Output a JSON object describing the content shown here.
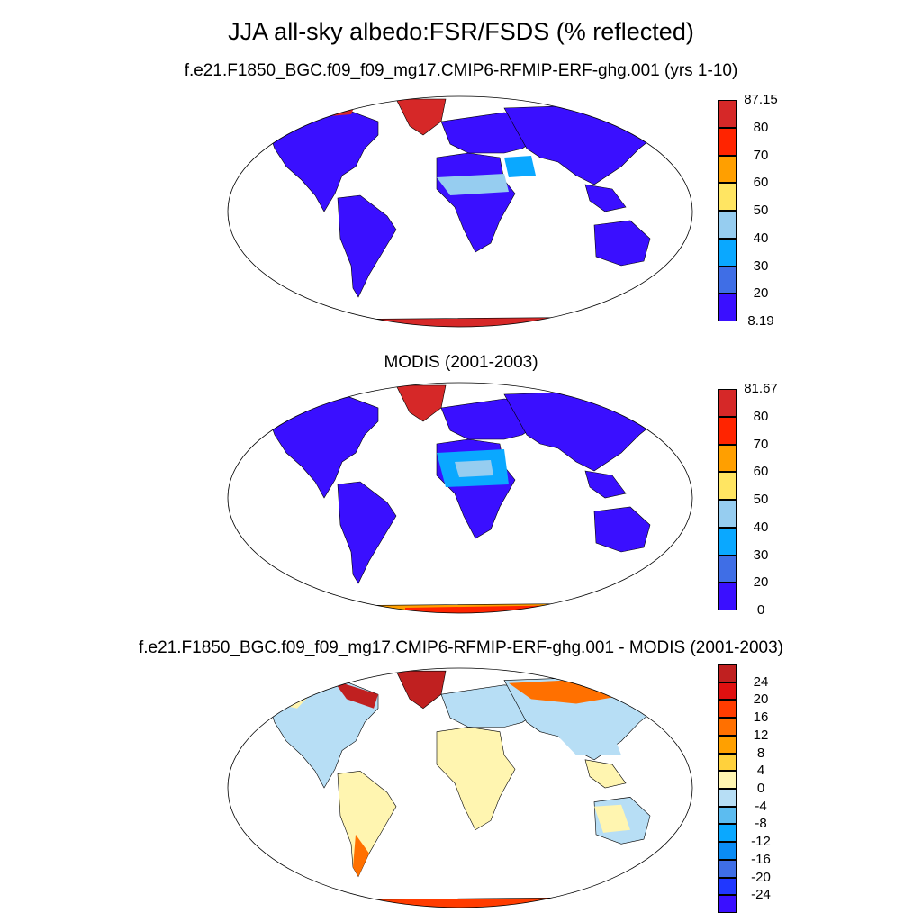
{
  "title": "JJA all-sky albedo:FSR/FSDS (% reflected)",
  "panels": [
    {
      "title": "f.e21.F1850_BGC.f09_f09_mg17.CMIP6-RFMIP-ERF-ghg.001 (yrs 1-10)",
      "colorbar": {
        "colors": [
          "#3a0fff",
          "#3f6ee6",
          "#0aa8ff",
          "#96cdf0",
          "#ffe562",
          "#ff9f00",
          "#ff2400",
          "#d62828"
        ],
        "labels": [
          "8.19",
          "20",
          "30",
          "40",
          "50",
          "60",
          "70",
          "80",
          "87.15"
        ]
      }
    },
    {
      "title": "MODIS (2001-2003)",
      "colorbar": {
        "colors": [
          "#3a0fff",
          "#3f6ee6",
          "#0aa8ff",
          "#96cdf0",
          "#ffe562",
          "#ff9f00",
          "#ff2400",
          "#d62828"
        ],
        "labels": [
          "0",
          "20",
          "30",
          "40",
          "50",
          "60",
          "70",
          "80",
          "81.67"
        ]
      }
    },
    {
      "title": "f.e21.F1850_BGC.f09_f09_mg17.CMIP6-RFMIP-ERF-ghg.001 - MODIS (2001-2003)",
      "colorbar": {
        "colors": [
          "#3a0fff",
          "#2037ff",
          "#3f6ee6",
          "#0a8cf5",
          "#0aa8ff",
          "#5cbcf0",
          "#b7def5",
          "#fff5b0",
          "#ffd13c",
          "#ffa000",
          "#ff7000",
          "#ff3c00",
          "#e01010",
          "#c02020"
        ],
        "labels": [
          "-24",
          "-20",
          "-16",
          "-12",
          "-8",
          "-4",
          "0",
          "4",
          "8",
          "12",
          "16",
          "20",
          "24"
        ]
      }
    }
  ]
}
